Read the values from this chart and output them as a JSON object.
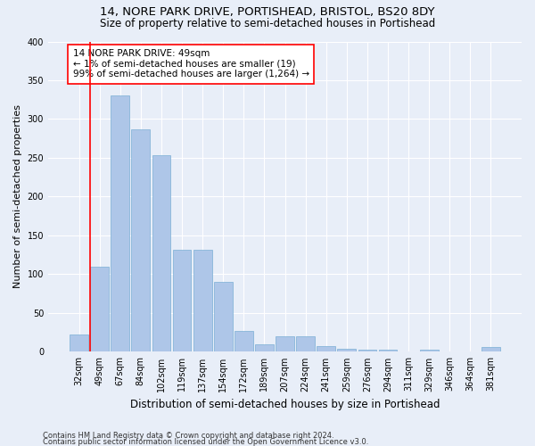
{
  "title": "14, NORE PARK DRIVE, PORTISHEAD, BRISTOL, BS20 8DY",
  "subtitle": "Size of property relative to semi-detached houses in Portishead",
  "xlabel": "Distribution of semi-detached houses by size in Portishead",
  "ylabel": "Number of semi-detached properties",
  "categories": [
    "32sqm",
    "49sqm",
    "67sqm",
    "84sqm",
    "102sqm",
    "119sqm",
    "137sqm",
    "154sqm",
    "172sqm",
    "189sqm",
    "207sqm",
    "224sqm",
    "241sqm",
    "259sqm",
    "276sqm",
    "294sqm",
    "311sqm",
    "329sqm",
    "346sqm",
    "364sqm",
    "381sqm"
  ],
  "values": [
    22,
    110,
    330,
    287,
    253,
    131,
    131,
    90,
    27,
    10,
    20,
    20,
    7,
    4,
    3,
    3,
    0,
    3,
    0,
    0,
    6
  ],
  "bar_color": "#aec6e8",
  "bar_edge_color": "#7aafd4",
  "highlight_bar_index": 1,
  "highlight_edge_color": "red",
  "annotation_text": "14 NORE PARK DRIVE: 49sqm\n← 1% of semi-detached houses are smaller (19)\n99% of semi-detached houses are larger (1,264) →",
  "vline_x": 1,
  "ylim": [
    0,
    400
  ],
  "yticks": [
    0,
    50,
    100,
    150,
    200,
    250,
    300,
    350,
    400
  ],
  "footer1": "Contains HM Land Registry data © Crown copyright and database right 2024.",
  "footer2": "Contains public sector information licensed under the Open Government Licence v3.0.",
  "bg_color": "#e8eef8",
  "plot_bg_color": "#e8eef8",
  "title_fontsize": 9.5,
  "subtitle_fontsize": 8.5,
  "tick_fontsize": 7,
  "ylabel_fontsize": 8,
  "xlabel_fontsize": 8.5,
  "bar_width": 0.9
}
